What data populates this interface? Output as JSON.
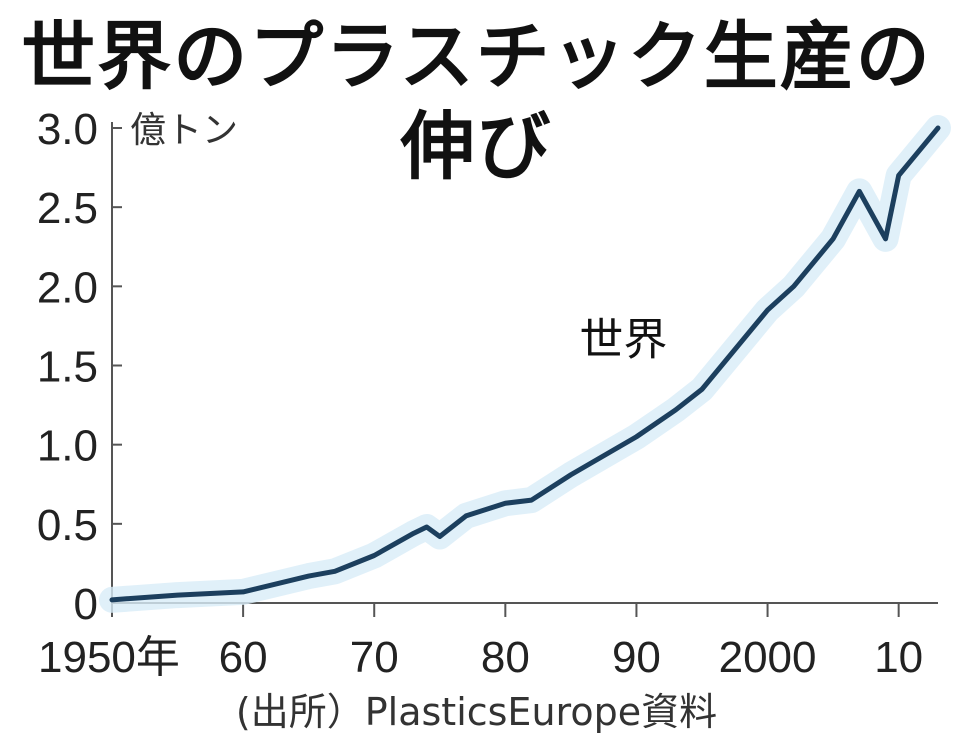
{
  "chart_data": {
    "type": "line",
    "title": "世界のプラスチック生産の伸び",
    "unit_label": "億トン",
    "ylim": [
      0,
      3.0
    ],
    "xlim": [
      1950,
      2013
    ],
    "y_ticks": [
      0,
      0.5,
      1.0,
      1.5,
      2.0,
      2.5,
      3.0
    ],
    "y_tick_labels": [
      "0",
      "0.5",
      "1.0",
      "1.5",
      "2.0",
      "2.5",
      "3.0"
    ],
    "x_ticks": [
      1950,
      1960,
      1970,
      1980,
      1990,
      2000,
      2010
    ],
    "x_tick_labels": [
      "1950年",
      "60",
      "70",
      "80",
      "90",
      "2000",
      "10"
    ],
    "series": [
      {
        "name": "世界",
        "color": "#1c3f5e",
        "x": [
          1950,
          1955,
          1960,
          1965,
          1967,
          1970,
          1973,
          1974,
          1975,
          1977,
          1980,
          1982,
          1985,
          1990,
          1993,
          1995,
          2000,
          2002,
          2005,
          2007,
          2008,
          2009,
          2010,
          2011,
          2013
        ],
        "y": [
          0.02,
          0.05,
          0.07,
          0.17,
          0.2,
          0.3,
          0.44,
          0.48,
          0.42,
          0.55,
          0.63,
          0.65,
          0.81,
          1.05,
          1.22,
          1.35,
          1.85,
          2.0,
          2.3,
          2.6,
          2.45,
          2.3,
          2.7,
          2.8,
          3.0
        ]
      }
    ],
    "series_label_position": {
      "x": 1989,
      "y": 1.57
    }
  },
  "source_note": "(出所）PlasticsEurope資料"
}
